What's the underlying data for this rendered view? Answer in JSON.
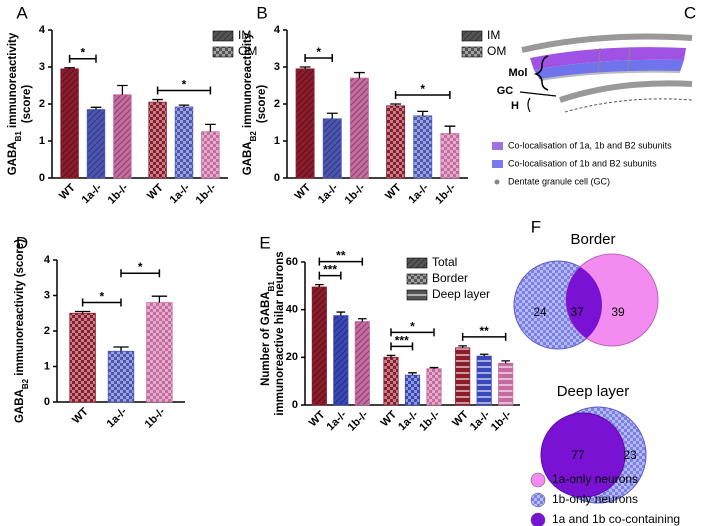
{
  "chart_data": [
    {
      "type": "bar",
      "letter": "A",
      "categories": [
        "WT",
        "1a-/-",
        "1b-/-"
      ],
      "colors": [
        "#8c1c2c",
        "#4b55b4",
        "#c76aa0"
      ],
      "series": [
        {
          "name": "IM",
          "pattern": "dense",
          "values": [
            2.95,
            1.85,
            2.25
          ],
          "errors": [
            0.03,
            0.06,
            0.25
          ]
        },
        {
          "name": "OM",
          "pattern": "checker",
          "values": [
            2.05,
            1.92,
            1.25
          ],
          "errors": [
            0.07,
            0.05,
            0.2
          ]
        }
      ],
      "ylim": [
        0,
        4
      ],
      "yticks": [
        0,
        1,
        2,
        3,
        4
      ],
      "ylabel": [
        [
          "GABA",
          "B1",
          " immunoreactivity"
        ],
        [
          "(score)"
        ]
      ],
      "significance": [
        {
          "series": 0,
          "from": 0,
          "to": 1,
          "label": "*"
        },
        {
          "series": 1,
          "from": 0,
          "to": 2,
          "label": "*"
        }
      ]
    },
    {
      "type": "bar",
      "letter": "B",
      "categories": [
        "WT",
        "1a-/-",
        "1b-/-"
      ],
      "colors": [
        "#8c1c2c",
        "#4b55b4",
        "#c76aa0"
      ],
      "series": [
        {
          "name": "IM",
          "pattern": "dense",
          "values": [
            2.95,
            1.6,
            2.7
          ],
          "errors": [
            0.05,
            0.15,
            0.15
          ]
        },
        {
          "name": "OM",
          "pattern": "checker",
          "values": [
            1.95,
            1.68,
            1.2
          ],
          "errors": [
            0.05,
            0.12,
            0.2
          ]
        }
      ],
      "ylim": [
        0,
        4
      ],
      "yticks": [
        0,
        1,
        2,
        3,
        4
      ],
      "ylabel": [
        [
          "GABA",
          "B2",
          " immunoreactivity"
        ],
        [
          "(score)"
        ]
      ],
      "significance": [
        {
          "series": 0,
          "from": 0,
          "to": 1,
          "label": "*"
        },
        {
          "series": 1,
          "from": 0,
          "to": 2,
          "label": "*"
        }
      ]
    },
    {
      "type": "bar",
      "letter": "D",
      "categories": [
        "WT",
        "1a-/-",
        "1b-/-"
      ],
      "colors": [
        "#8c1c2c",
        "#4b55b4",
        "#c76aa0"
      ],
      "series": [
        {
          "pattern": "checker",
          "values": [
            2.5,
            1.43,
            2.8
          ],
          "errors": [
            0.05,
            0.12,
            0.18
          ]
        }
      ],
      "ylim": [
        0,
        4
      ],
      "yticks": [
        0,
        1,
        2,
        3,
        4
      ],
      "ylabel": [
        [
          "GABA",
          "B2",
          " immunoreactivity (score)"
        ]
      ],
      "significance": [
        {
          "series": 0,
          "from": 0,
          "to": 1,
          "label": "*"
        },
        {
          "series": 0,
          "from": 1,
          "to": 2,
          "label": "*"
        }
      ]
    },
    {
      "type": "bar",
      "letter": "E",
      "categories": [
        "WT",
        "1a-/-",
        "1b-/-"
      ],
      "colors": [
        "#8c1c2c",
        "#3848b8",
        "#c76aa0"
      ],
      "series": [
        {
          "name": "Total",
          "pattern": "dense",
          "values": [
            49.5,
            37.5,
            35
          ],
          "errors": [
            1,
            1.5,
            1.2
          ]
        },
        {
          "name": "Border",
          "pattern": "checker",
          "values": [
            20,
            12.5,
            15.2
          ],
          "errors": [
            0.8,
            1,
            0.5
          ]
        },
        {
          "name": "Deep layer",
          "pattern": "stripes",
          "values": [
            24,
            20.5,
            17.5
          ],
          "errors": [
            0.8,
            0.8,
            1
          ]
        }
      ],
      "ylim": [
        0,
        60
      ],
      "yticks": [
        0,
        20,
        40,
        60
      ],
      "ylabel": [
        [
          "Number of GABA",
          "B1"
        ],
        [
          "immunoreactive hilar neurons"
        ]
      ],
      "significance": [
        {
          "series": 0,
          "from": 0,
          "to": 1,
          "label": "***"
        },
        {
          "series": 0,
          "from": 0,
          "to": 2,
          "label": "**"
        },
        {
          "series": 1,
          "from": 0,
          "to": 1,
          "label": "***"
        },
        {
          "series": 1,
          "from": 0,
          "to": 2,
          "label": "*"
        },
        {
          "series": 2,
          "from": 0,
          "to": 2,
          "label": "**"
        }
      ]
    }
  ],
  "diagram": {
    "letter": "C",
    "labels": [
      "Mol",
      "GC",
      "H"
    ],
    "legend": [
      "Co-localisation of 1a, 1b and B2 subunits",
      "Co-localisation of 1b and B2 subunits",
      "Dentate granule cell (GC)"
    ]
  },
  "venn": {
    "letter": "F",
    "diagrams": [
      {
        "title": "Border",
        "values": [
          24,
          37,
          39
        ]
      },
      {
        "title": "Deep layer",
        "values": [
          77,
          23
        ]
      }
    ],
    "legend": [
      {
        "label": "1a-only neurons",
        "color": "#f28cf0"
      },
      {
        "label": "1b-only neurons",
        "color": "#7b7fe8"
      },
      {
        "label": "1a and 1b co-containing",
        "color": "#7a12d4"
      }
    ]
  }
}
